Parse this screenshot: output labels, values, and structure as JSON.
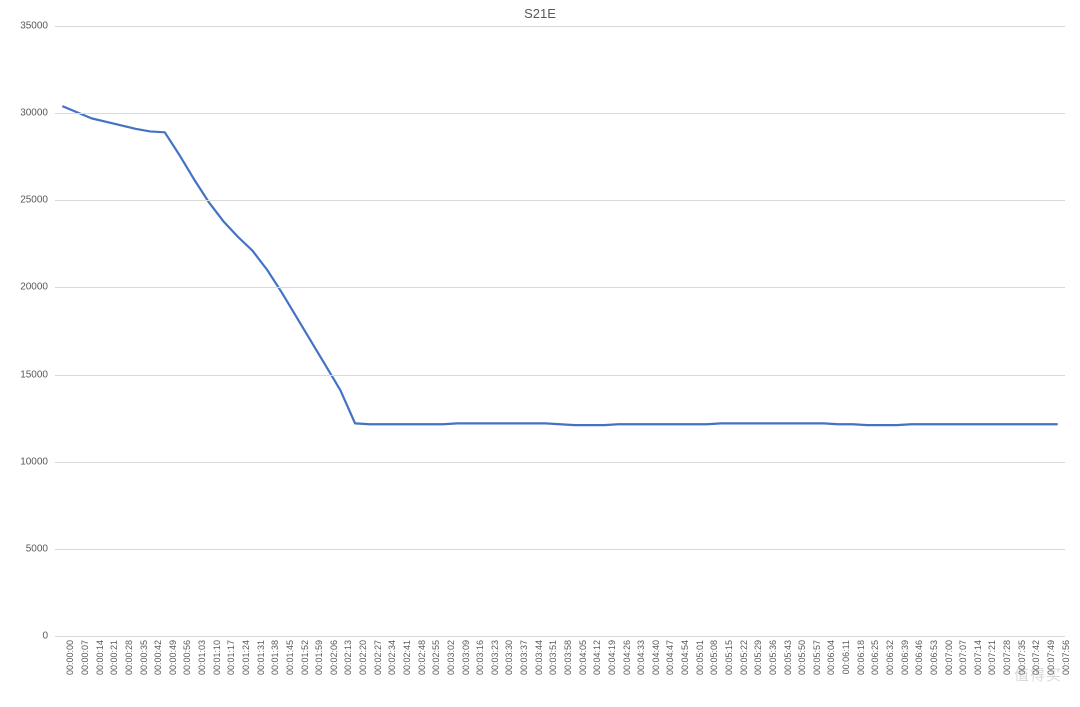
{
  "chart": {
    "type": "line",
    "title": "S21E",
    "title_fontsize": 13,
    "title_color": "#595959",
    "background_color": "#ffffff",
    "grid_color": "#d9d9d9",
    "line_color": "#4472c4",
    "line_width": 2.2,
    "label_fontsize": 10,
    "label_color": "#595959",
    "ylim": [
      0,
      35000
    ],
    "ytick_step": 5000,
    "yticks": [
      0,
      5000,
      10000,
      15000,
      20000,
      25000,
      30000,
      35000
    ],
    "categories": [
      "00:00:00",
      "00:00:07",
      "00:00:14",
      "00:00:21",
      "00:00:28",
      "00:00:35",
      "00:00:42",
      "00:00:49",
      "00:00:56",
      "00:01:03",
      "00:01:10",
      "00:01:17",
      "00:01:24",
      "00:01:31",
      "00:01:38",
      "00:01:45",
      "00:01:52",
      "00:01:59",
      "00:02:06",
      "00:02:13",
      "00:02:20",
      "00:02:27",
      "00:02:34",
      "00:02:41",
      "00:02:48",
      "00:02:55",
      "00:03:02",
      "00:03:09",
      "00:03:16",
      "00:03:23",
      "00:03:30",
      "00:03:37",
      "00:03:44",
      "00:03:51",
      "00:03:58",
      "00:04:05",
      "00:04:12",
      "00:04:19",
      "00:04:26",
      "00:04:33",
      "00:04:40",
      "00:04:47",
      "00:04:54",
      "00:05:01",
      "00:05:08",
      "00:05:15",
      "00:05:22",
      "00:05:29",
      "00:05:36",
      "00:05:43",
      "00:05:50",
      "00:05:57",
      "00:06:04",
      "00:06:11",
      "00:06:18",
      "00:06:25",
      "00:06:32",
      "00:06:39",
      "00:06:46",
      "00:06:53",
      "00:07:00",
      "00:07:07",
      "00:07:14",
      "00:07:21",
      "00:07:28",
      "00:07:35",
      "00:07:42",
      "00:07:49",
      "00:07:56"
    ],
    "values": [
      30400,
      30050,
      29700,
      29500,
      29300,
      29100,
      28950,
      28900,
      27600,
      26200,
      24900,
      23800,
      22900,
      22100,
      21000,
      19700,
      18300,
      16900,
      15500,
      14100,
      12200,
      12150,
      12150,
      12150,
      12150,
      12150,
      12150,
      12200,
      12200,
      12200,
      12200,
      12200,
      12200,
      12200,
      12150,
      12100,
      12100,
      12100,
      12150,
      12150,
      12150,
      12150,
      12150,
      12150,
      12150,
      12200,
      12200,
      12200,
      12200,
      12200,
      12200,
      12200,
      12200,
      12150,
      12150,
      12100,
      12100,
      12100,
      12150,
      12150,
      12150,
      12150,
      12150,
      12150,
      12150,
      12150,
      12150,
      12150,
      12150
    ]
  },
  "watermark": "值得买"
}
